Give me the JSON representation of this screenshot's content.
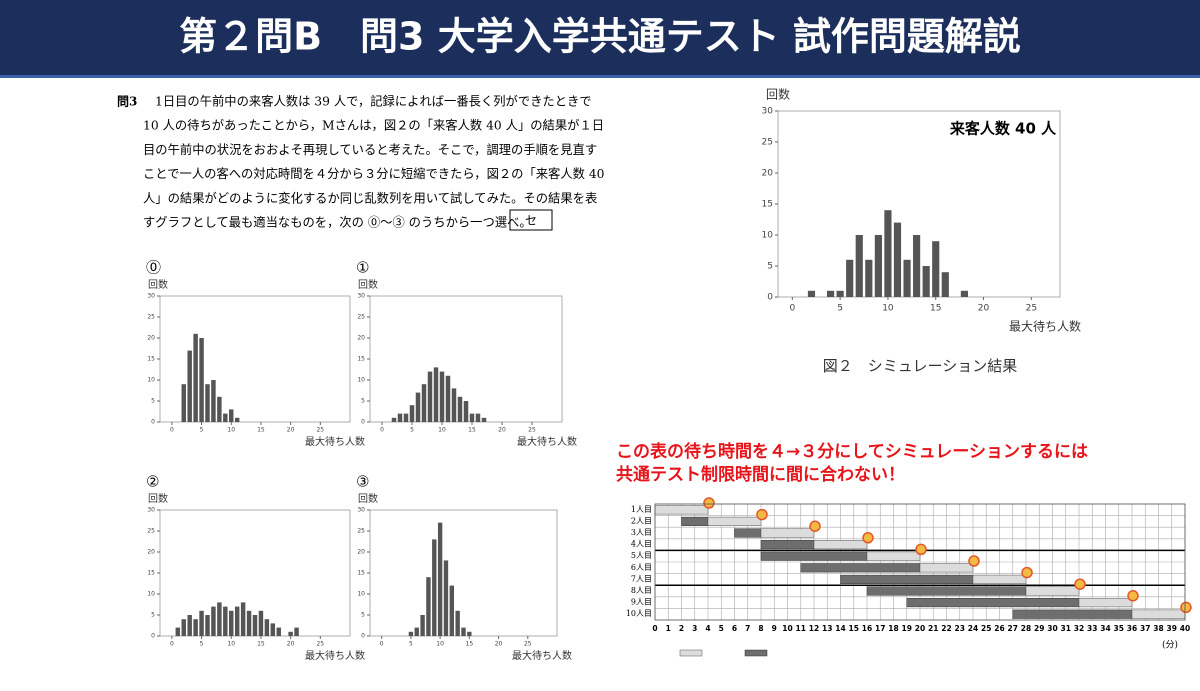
{
  "header": {
    "title": "第２問B　問3 大学入学共通テスト 試作問題解説"
  },
  "question": {
    "label": "問3",
    "lines": [
      "1日目の午前中の来客人数は 39 人で，記録によれば一番長く列ができたときで",
      "10 人の待ちがあったことから，Mさんは，図２の「来客人数 40 人」の結果が１日",
      "目の午前中の状況をおおよそ再現していると考えた。そこで，調理の手順を見直す",
      "ことで一人の客への対応時間を４分から３分に短縮できたら，図２の「来客人数 40",
      "人」の結果がどのように変化するか同じ乱数列を用いて試してみた。その結果を表",
      "すグラフとして最も適当なものを，次の ⓪～③ のうちから一つ選べ。"
    ],
    "answer_box": "セ"
  },
  "options": [
    {
      "type": "bar",
      "marker": "⓪",
      "y_label": "回数",
      "x_label": "最大待ち人数",
      "color": "#555555",
      "xlim": [
        -2,
        30
      ],
      "ylim": [
        0,
        30
      ],
      "xticks": [
        0,
        5,
        10,
        15,
        20,
        25
      ],
      "yticks": [
        0,
        5,
        10,
        15,
        20,
        25,
        30
      ],
      "x": [
        2,
        3,
        4,
        5,
        6,
        7,
        8,
        9,
        10,
        11
      ],
      "values": [
        9,
        17,
        21,
        20,
        9,
        10,
        6,
        2,
        3,
        1
      ]
    },
    {
      "type": "bar",
      "marker": "①",
      "y_label": "回数",
      "x_label": "最大待ち人数",
      "color": "#555555",
      "xlim": [
        -2,
        30
      ],
      "ylim": [
        0,
        30
      ],
      "xticks": [
        0,
        5,
        10,
        15,
        20,
        25
      ],
      "yticks": [
        0,
        5,
        10,
        15,
        20,
        25,
        30
      ],
      "x": [
        2,
        3,
        4,
        5,
        6,
        7,
        8,
        9,
        10,
        11,
        12,
        13,
        14,
        15,
        16,
        17
      ],
      "values": [
        1,
        2,
        2,
        4,
        7,
        9,
        12,
        13,
        12,
        11,
        8,
        6,
        5,
        2,
        2,
        1
      ]
    },
    {
      "type": "bar",
      "marker": "②",
      "y_label": "回数",
      "x_label": "最大待ち人数",
      "color": "#555555",
      "xlim": [
        -2,
        30
      ],
      "ylim": [
        0,
        30
      ],
      "xticks": [
        0,
        5,
        10,
        15,
        20,
        25
      ],
      "yticks": [
        0,
        5,
        10,
        15,
        20,
        25,
        30
      ],
      "x": [
        1,
        2,
        3,
        4,
        5,
        6,
        7,
        8,
        9,
        10,
        11,
        12,
        13,
        14,
        15,
        16,
        17,
        18,
        20,
        21
      ],
      "values": [
        2,
        4,
        5,
        4,
        6,
        5,
        7,
        8,
        7,
        6,
        7,
        8,
        6,
        5,
        6,
        4,
        3,
        2,
        1,
        2
      ]
    },
    {
      "type": "bar",
      "marker": "③",
      "y_label": "回数",
      "x_label": "最大待ち人数",
      "color": "#555555",
      "xlim": [
        -2,
        30
      ],
      "ylim": [
        0,
        30
      ],
      "xticks": [
        0,
        5,
        10,
        15,
        20,
        25
      ],
      "yticks": [
        0,
        5,
        10,
        15,
        20,
        25,
        30
      ],
      "x": [
        5,
        6,
        7,
        8,
        9,
        10,
        11,
        12,
        13,
        14,
        15
      ],
      "values": [
        1,
        2,
        5,
        14,
        23,
        27,
        18,
        12,
        6,
        2,
        1
      ]
    }
  ],
  "figure2": {
    "type": "bar",
    "y_label": "回数",
    "x_label": "最大待ち人数",
    "annotation": "来客人数 40 人",
    "caption": "図２　シミュレーション結果",
    "color": "#555555",
    "xlim": [
      -1.5,
      28
    ],
    "ylim": [
      0,
      30
    ],
    "xticks": [
      0,
      5,
      10,
      15,
      20,
      25
    ],
    "yticks": [
      0,
      5,
      10,
      15,
      20,
      25,
      30
    ],
    "x": [
      2,
      4,
      5,
      6,
      7,
      8,
      9,
      10,
      11,
      12,
      13,
      14,
      15,
      16,
      18
    ],
    "values": [
      1,
      1,
      1,
      6,
      10,
      6,
      10,
      14,
      12,
      6,
      10,
      5,
      9,
      4,
      1
    ]
  },
  "note": {
    "lines": [
      "この表の待ち時間を４→３分にしてシミュレーションするには",
      "共通テスト制限時間に間に合わない！"
    ]
  },
  "schedule": {
    "rows": [
      "1人目",
      "2人目",
      "3人目",
      "4人目",
      "5人目",
      "6人目",
      "7人目",
      "8人目",
      "9人目",
      "10人目"
    ],
    "waits": [
      null,
      [
        2,
        4
      ],
      [
        6,
        8
      ],
      [
        8,
        12
      ],
      [
        8,
        16
      ],
      [
        11,
        20
      ],
      [
        14,
        24
      ],
      [
        16,
        28
      ],
      [
        19,
        32
      ],
      [
        27,
        36
      ]
    ],
    "serves": [
      [
        0,
        4
      ],
      [
        4,
        8
      ],
      [
        8,
        12
      ],
      [
        12,
        16
      ],
      [
        16,
        20
      ],
      [
        20,
        24
      ],
      [
        24,
        28
      ],
      [
        28,
        32
      ],
      [
        32,
        36
      ],
      [
        36,
        40
      ]
    ],
    "xlim": [
      0,
      40
    ],
    "xticks": [
      0,
      1,
      2,
      3,
      4,
      5,
      6,
      7,
      8,
      9,
      10,
      11,
      12,
      13,
      14,
      15,
      16,
      17,
      18,
      19,
      20,
      21,
      22,
      23,
      24,
      25,
      26,
      27,
      28,
      29,
      30,
      31,
      32,
      33,
      34,
      35,
      36,
      37,
      38,
      39,
      40
    ],
    "unit": "(分)"
  }
}
